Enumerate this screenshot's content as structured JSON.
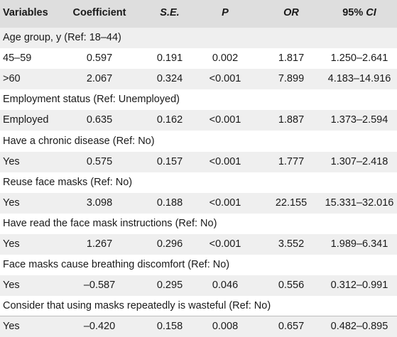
{
  "headers": [
    "Variables",
    "Coefficient",
    "S.E.",
    "P",
    "OR",
    "95% CI"
  ],
  "rows": [
    {
      "type": "section",
      "label": "Age group, y (Ref: 18–44)"
    },
    {
      "type": "data",
      "cells": [
        "45–59",
        "0.597",
        "0.191",
        "0.002",
        "1.817",
        "1.250–2.641"
      ]
    },
    {
      "type": "data",
      "cells": [
        ">60",
        "2.067",
        "0.324",
        "<0.001",
        "7.899",
        "4.183–14.916"
      ]
    },
    {
      "type": "section",
      "label": "Employment status (Ref: Unemployed)"
    },
    {
      "type": "data",
      "cells": [
        "Employed",
        "0.635",
        "0.162",
        "<0.001",
        "1.887",
        "1.373–2.594"
      ]
    },
    {
      "type": "section",
      "label": "Have a chronic disease (Ref: No)"
    },
    {
      "type": "data",
      "cells": [
        "Yes",
        "0.575",
        "0.157",
        "<0.001",
        "1.777",
        "1.307–2.418"
      ]
    },
    {
      "type": "section",
      "label": "Reuse face masks (Ref: No)"
    },
    {
      "type": "data",
      "cells": [
        "Yes",
        "3.098",
        "0.188",
        "<0.001",
        "22.155",
        "15.331–32.016"
      ]
    },
    {
      "type": "section",
      "label": "Have read the face mask instructions (Ref: No)"
    },
    {
      "type": "data",
      "cells": [
        "Yes",
        "1.267",
        "0.296",
        "<0.001",
        "3.552",
        "1.989–6.341"
      ]
    },
    {
      "type": "section",
      "label": "Face masks cause breathing discomfort (Ref: No)"
    },
    {
      "type": "data",
      "cells": [
        "Yes",
        "–0.587",
        "0.295",
        "0.046",
        "0.556",
        "0.312–0.991"
      ]
    },
    {
      "type": "section",
      "label": "Consider that using masks repeatedly is wasteful (Ref: No)"
    },
    {
      "type": "data",
      "cells": [
        "Yes",
        "–0.420",
        "0.158",
        "0.008",
        "0.657",
        "0.482–0.895"
      ]
    }
  ]
}
